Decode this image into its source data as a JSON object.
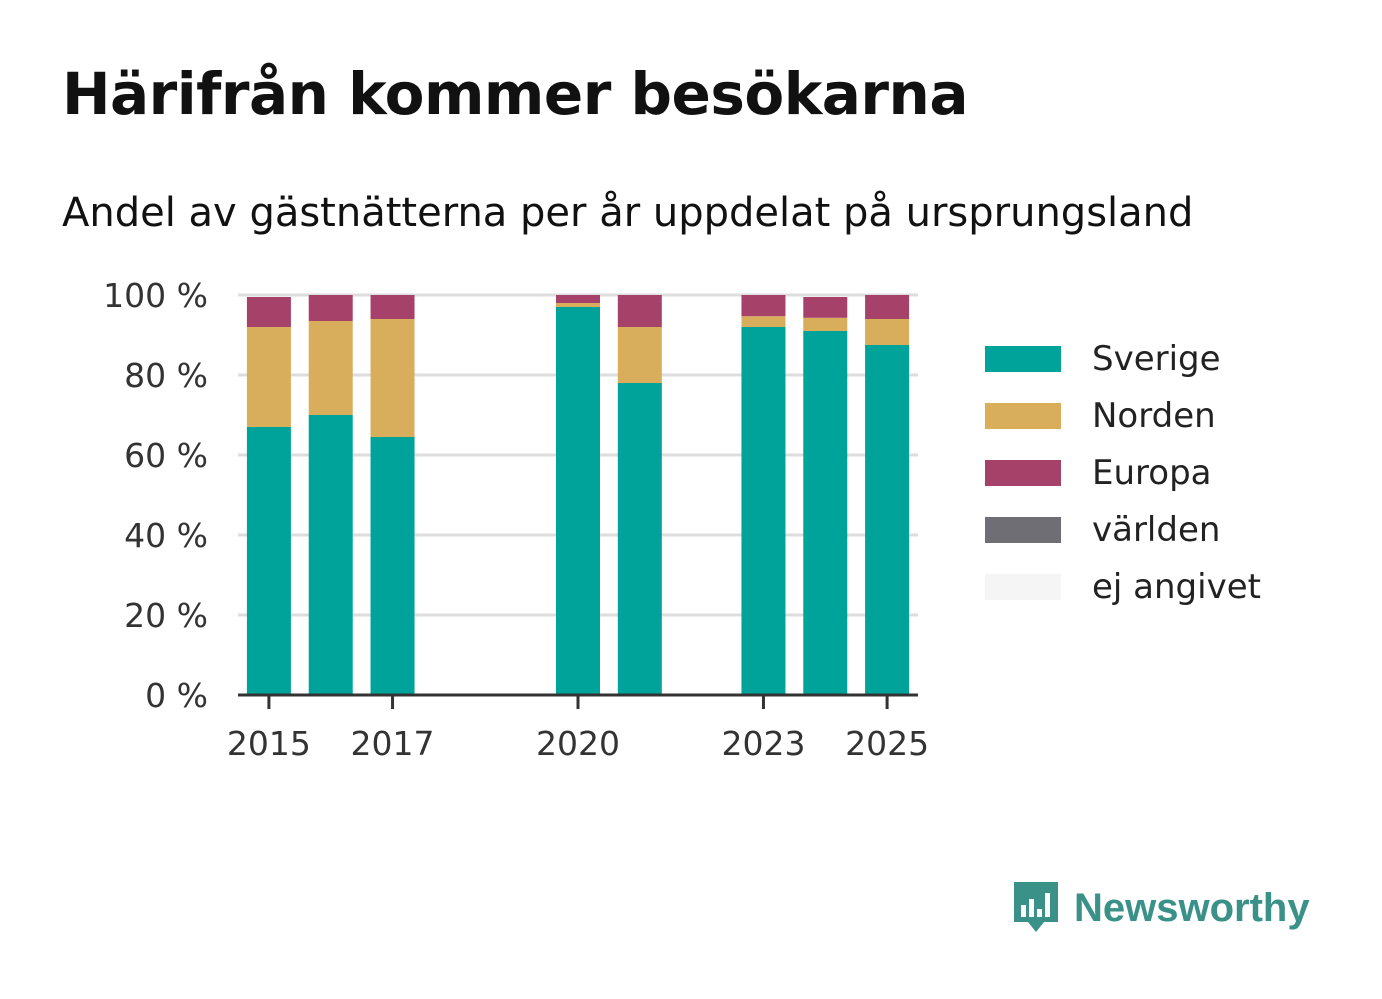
{
  "title": "Härifrån kommer besökarna",
  "subtitle": "Andel av gästnätterna per år uppdelat på ursprungsland",
  "brand": "Newsworthy",
  "colors": {
    "Sverige": "#00a39a",
    "Norden": "#d8ae5c",
    "Europa": "#a6426a",
    "världen": "#6e6e74",
    "ej angivet": "#f5f5f5",
    "brand": "#3a9188",
    "grid": "#dddddd",
    "axis": "#333333"
  },
  "chart_data": {
    "type": "bar",
    "stacked": true,
    "x_range": [
      2014.5,
      2025.5
    ],
    "x_ticks": [
      2015,
      2017,
      2020,
      2023,
      2025
    ],
    "x_tick_labels": [
      "2015",
      "2017",
      "2020",
      "2023",
      "2025"
    ],
    "y_ticks": [
      0,
      20,
      40,
      60,
      80,
      100
    ],
    "y_tick_labels": [
      "0 %",
      "20 %",
      "40 %",
      "60 %",
      "80 %",
      "100 %"
    ],
    "ylim": [
      0,
      100
    ],
    "grid": true,
    "legend_position": "right",
    "categories": [
      2015,
      2016,
      2017,
      2020,
      2021,
      2023,
      2024,
      2025
    ],
    "series": [
      {
        "name": "Sverige",
        "values": [
          67,
          70,
          64.5,
          97,
          78,
          92,
          91,
          87.5
        ]
      },
      {
        "name": "Norden",
        "values": [
          25,
          23.5,
          29.5,
          1,
          14,
          2.7,
          3.3,
          6.5
        ]
      },
      {
        "name": "Europa",
        "values": [
          7.5,
          6.5,
          6,
          2,
          8,
          5.3,
          5.2,
          6
        ]
      },
      {
        "name": "världen",
        "values": [
          0,
          0,
          0,
          0,
          0,
          0,
          0,
          0
        ]
      },
      {
        "name": "ej angivet",
        "values": [
          0,
          0,
          0,
          0,
          0,
          0,
          0,
          0
        ]
      }
    ]
  }
}
